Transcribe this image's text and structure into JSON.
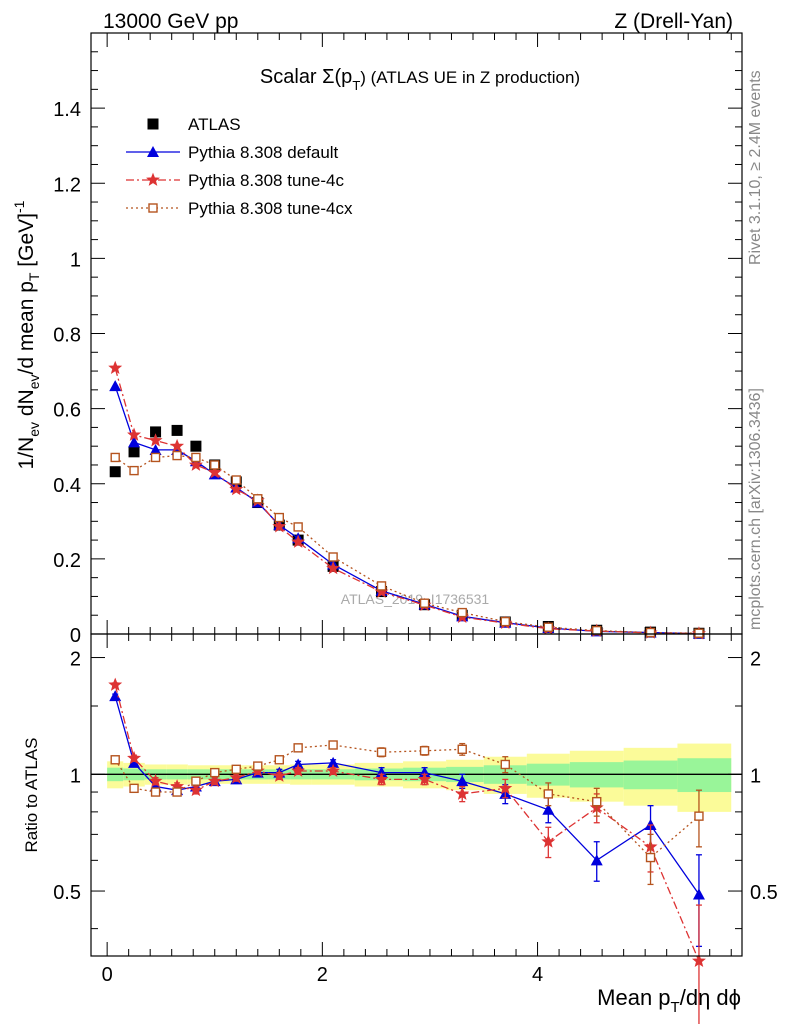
{
  "header": {
    "energy_label": "13000 GeV pp",
    "process_label": "Z (Drell-Yan)",
    "side_label_top": "Rivet 3.1.10, ≥ 2.4M events",
    "side_label_bottom": "mcplots.cern.ch [arXiv:1306.3436]",
    "watermark": "ATLAS_2019_I1736531"
  },
  "chart_data": [
    {
      "panel": "main",
      "type": "scatter",
      "title": "Scalar Σ(p_T) (ATLAS UE in Z production)",
      "title_main": "Scalar Σ(p",
      "title_sub": "T",
      "title_tail": ") (ATLAS UE in Z production)",
      "xlabel": "Mean p_T/dη dφ",
      "ylabel": "1/N_ev dN_ev/d mean p_T [GeV]^-1",
      "xlim": [
        -0.15,
        5.9
      ],
      "ylim": [
        0,
        1.6
      ],
      "yticks": [
        0,
        0.2,
        0.4,
        0.6,
        0.8,
        1,
        1.2,
        1.4
      ],
      "ytick_labels": [
        "0",
        "0.2",
        "0.4",
        "0.6",
        "0.8",
        "1",
        "1.2",
        "1.4"
      ],
      "x": [
        0.075,
        0.25,
        0.45,
        0.65,
        0.825,
        1.0,
        1.2,
        1.4,
        1.6,
        1.775,
        2.1,
        2.55,
        2.95,
        3.3,
        3.7,
        4.1,
        4.55,
        5.05,
        5.5
      ],
      "legend_position": "top-left",
      "series": [
        {
          "name": "ATLAS",
          "color": "#000000",
          "marker": "square",
          "values": [
            0.432,
            0.485,
            0.538,
            0.542,
            0.5,
            0.45,
            0.405,
            0.35,
            0.29,
            0.25,
            0.18,
            0.113,
            0.078,
            0.05,
            0.032,
            0.02,
            0.01,
            0.005,
            0.002
          ]
        },
        {
          "name": "Pythia 8.308 default",
          "color": "#0000dd",
          "marker": "triangle",
          "dash": "",
          "values": [
            0.66,
            0.51,
            0.49,
            0.49,
            0.46,
            0.425,
            0.39,
            0.35,
            0.29,
            0.255,
            0.185,
            0.115,
            0.079,
            0.047,
            0.03,
            0.016,
            0.007,
            0.004,
            0.001
          ]
        },
        {
          "name": "Pythia 8.308 tune-4c",
          "color": "#dd3333",
          "marker": "star",
          "dash": "8,3,2,3",
          "values": [
            0.708,
            0.53,
            0.515,
            0.5,
            0.45,
            0.43,
            0.385,
            0.355,
            0.286,
            0.245,
            0.175,
            0.112,
            0.077,
            0.045,
            0.029,
            0.014,
            0.008,
            0.003,
            0.001
          ]
        },
        {
          "name": "Pythia 8.308 tune-4cx",
          "color": "#b5541f",
          "marker": "open-square",
          "dash": "2,3",
          "values": [
            0.47,
            0.435,
            0.47,
            0.475,
            0.47,
            0.45,
            0.41,
            0.36,
            0.31,
            0.285,
            0.205,
            0.128,
            0.082,
            0.057,
            0.033,
            0.018,
            0.009,
            0.004,
            0.002
          ]
        }
      ]
    },
    {
      "panel": "ratio",
      "type": "line",
      "ylabel": "Ratio to ATLAS",
      "xlim": [
        -0.15,
        5.9
      ],
      "ylim": [
        0.34,
        2.3
      ],
      "reference": 1,
      "yticks": [
        0.5,
        1,
        2
      ],
      "ytick_labels": [
        "0.5",
        "1",
        "2"
      ],
      "xticks": [
        0,
        2,
        4
      ],
      "xtick_labels": [
        "0",
        "2",
        "4"
      ],
      "band_edges": [
        0.0,
        0.15,
        0.35,
        0.55,
        0.75,
        0.9,
        1.1,
        1.3,
        1.5,
        1.7,
        1.9,
        2.3,
        2.75,
        3.15,
        3.5,
        3.9,
        4.3,
        4.8,
        5.3,
        5.8
      ],
      "band_inner": [
        0.04,
        0.035,
        0.03,
        0.03,
        0.03,
        0.03,
        0.03,
        0.03,
        0.03,
        0.03,
        0.03,
        0.035,
        0.04,
        0.045,
        0.055,
        0.065,
        0.075,
        0.085,
        0.1
      ],
      "band_outer": [
        0.08,
        0.07,
        0.06,
        0.06,
        0.055,
        0.055,
        0.055,
        0.055,
        0.055,
        0.06,
        0.06,
        0.07,
        0.08,
        0.09,
        0.11,
        0.13,
        0.15,
        0.17,
        0.2
      ],
      "band_colors": {
        "inner": "#99f599",
        "outer": "#fbfb99"
      },
      "series": [
        {
          "name": "Pythia 8.308 default",
          "color": "#0000dd",
          "marker": "triangle",
          "dash": "",
          "values": [
            1.59,
            1.07,
            0.93,
            0.91,
            0.93,
            0.96,
            0.97,
            1.01,
            1.01,
            1.06,
            1.07,
            1.01,
            1.01,
            0.96,
            0.89,
            0.81,
            0.6,
            0.74,
            0.49
          ],
          "errors": [
            0.02,
            0.02,
            0.02,
            0.02,
            0.02,
            0.02,
            0.02,
            0.02,
            0.02,
            0.02,
            0.02,
            0.03,
            0.03,
            0.04,
            0.05,
            0.06,
            0.07,
            0.09,
            0.13
          ]
        },
        {
          "name": "Pythia 8.308 tune-4c",
          "color": "#dd3333",
          "marker": "star",
          "dash": "8,3,2,3",
          "values": [
            1.7,
            1.1,
            0.96,
            0.93,
            0.91,
            0.96,
            0.98,
            1.02,
            0.99,
            1.02,
            1.02,
            0.97,
            0.97,
            0.89,
            0.92,
            0.67,
            0.82,
            0.65,
            0.33
          ],
          "errors": [
            0.02,
            0.02,
            0.02,
            0.02,
            0.02,
            0.02,
            0.02,
            0.02,
            0.02,
            0.02,
            0.02,
            0.03,
            0.03,
            0.04,
            0.05,
            0.06,
            0.07,
            0.09,
            0.13
          ]
        },
        {
          "name": "Pythia 8.308 tune-4cx",
          "color": "#b5541f",
          "marker": "open-square",
          "dash": "2,3",
          "values": [
            1.09,
            0.92,
            0.9,
            0.9,
            0.96,
            1.01,
            1.03,
            1.05,
            1.09,
            1.17,
            1.19,
            1.14,
            1.15,
            1.16,
            1.06,
            0.89,
            0.85,
            0.61,
            0.78
          ],
          "errors": [
            0.02,
            0.02,
            0.02,
            0.02,
            0.02,
            0.02,
            0.02,
            0.02,
            0.02,
            0.02,
            0.02,
            0.03,
            0.03,
            0.04,
            0.05,
            0.06,
            0.07,
            0.09,
            0.13
          ]
        }
      ]
    }
  ]
}
